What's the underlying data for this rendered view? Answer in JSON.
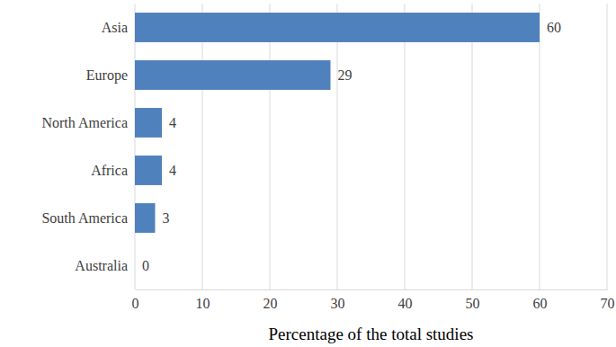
{
  "chart_data": {
    "type": "bar",
    "orientation": "horizontal",
    "x_label": "Percentage of the total studies",
    "categories": [
      "Asia",
      "Europe",
      "North America",
      "Africa",
      "South America",
      "Australia"
    ],
    "values": [
      60,
      29,
      4,
      4,
      3,
      0
    ],
    "color": "#4f81bd",
    "xlim": [
      0,
      70
    ],
    "xticks": [
      0,
      10,
      20,
      30,
      40,
      50,
      60,
      70
    ],
    "grid": true,
    "data_labels": true
  }
}
